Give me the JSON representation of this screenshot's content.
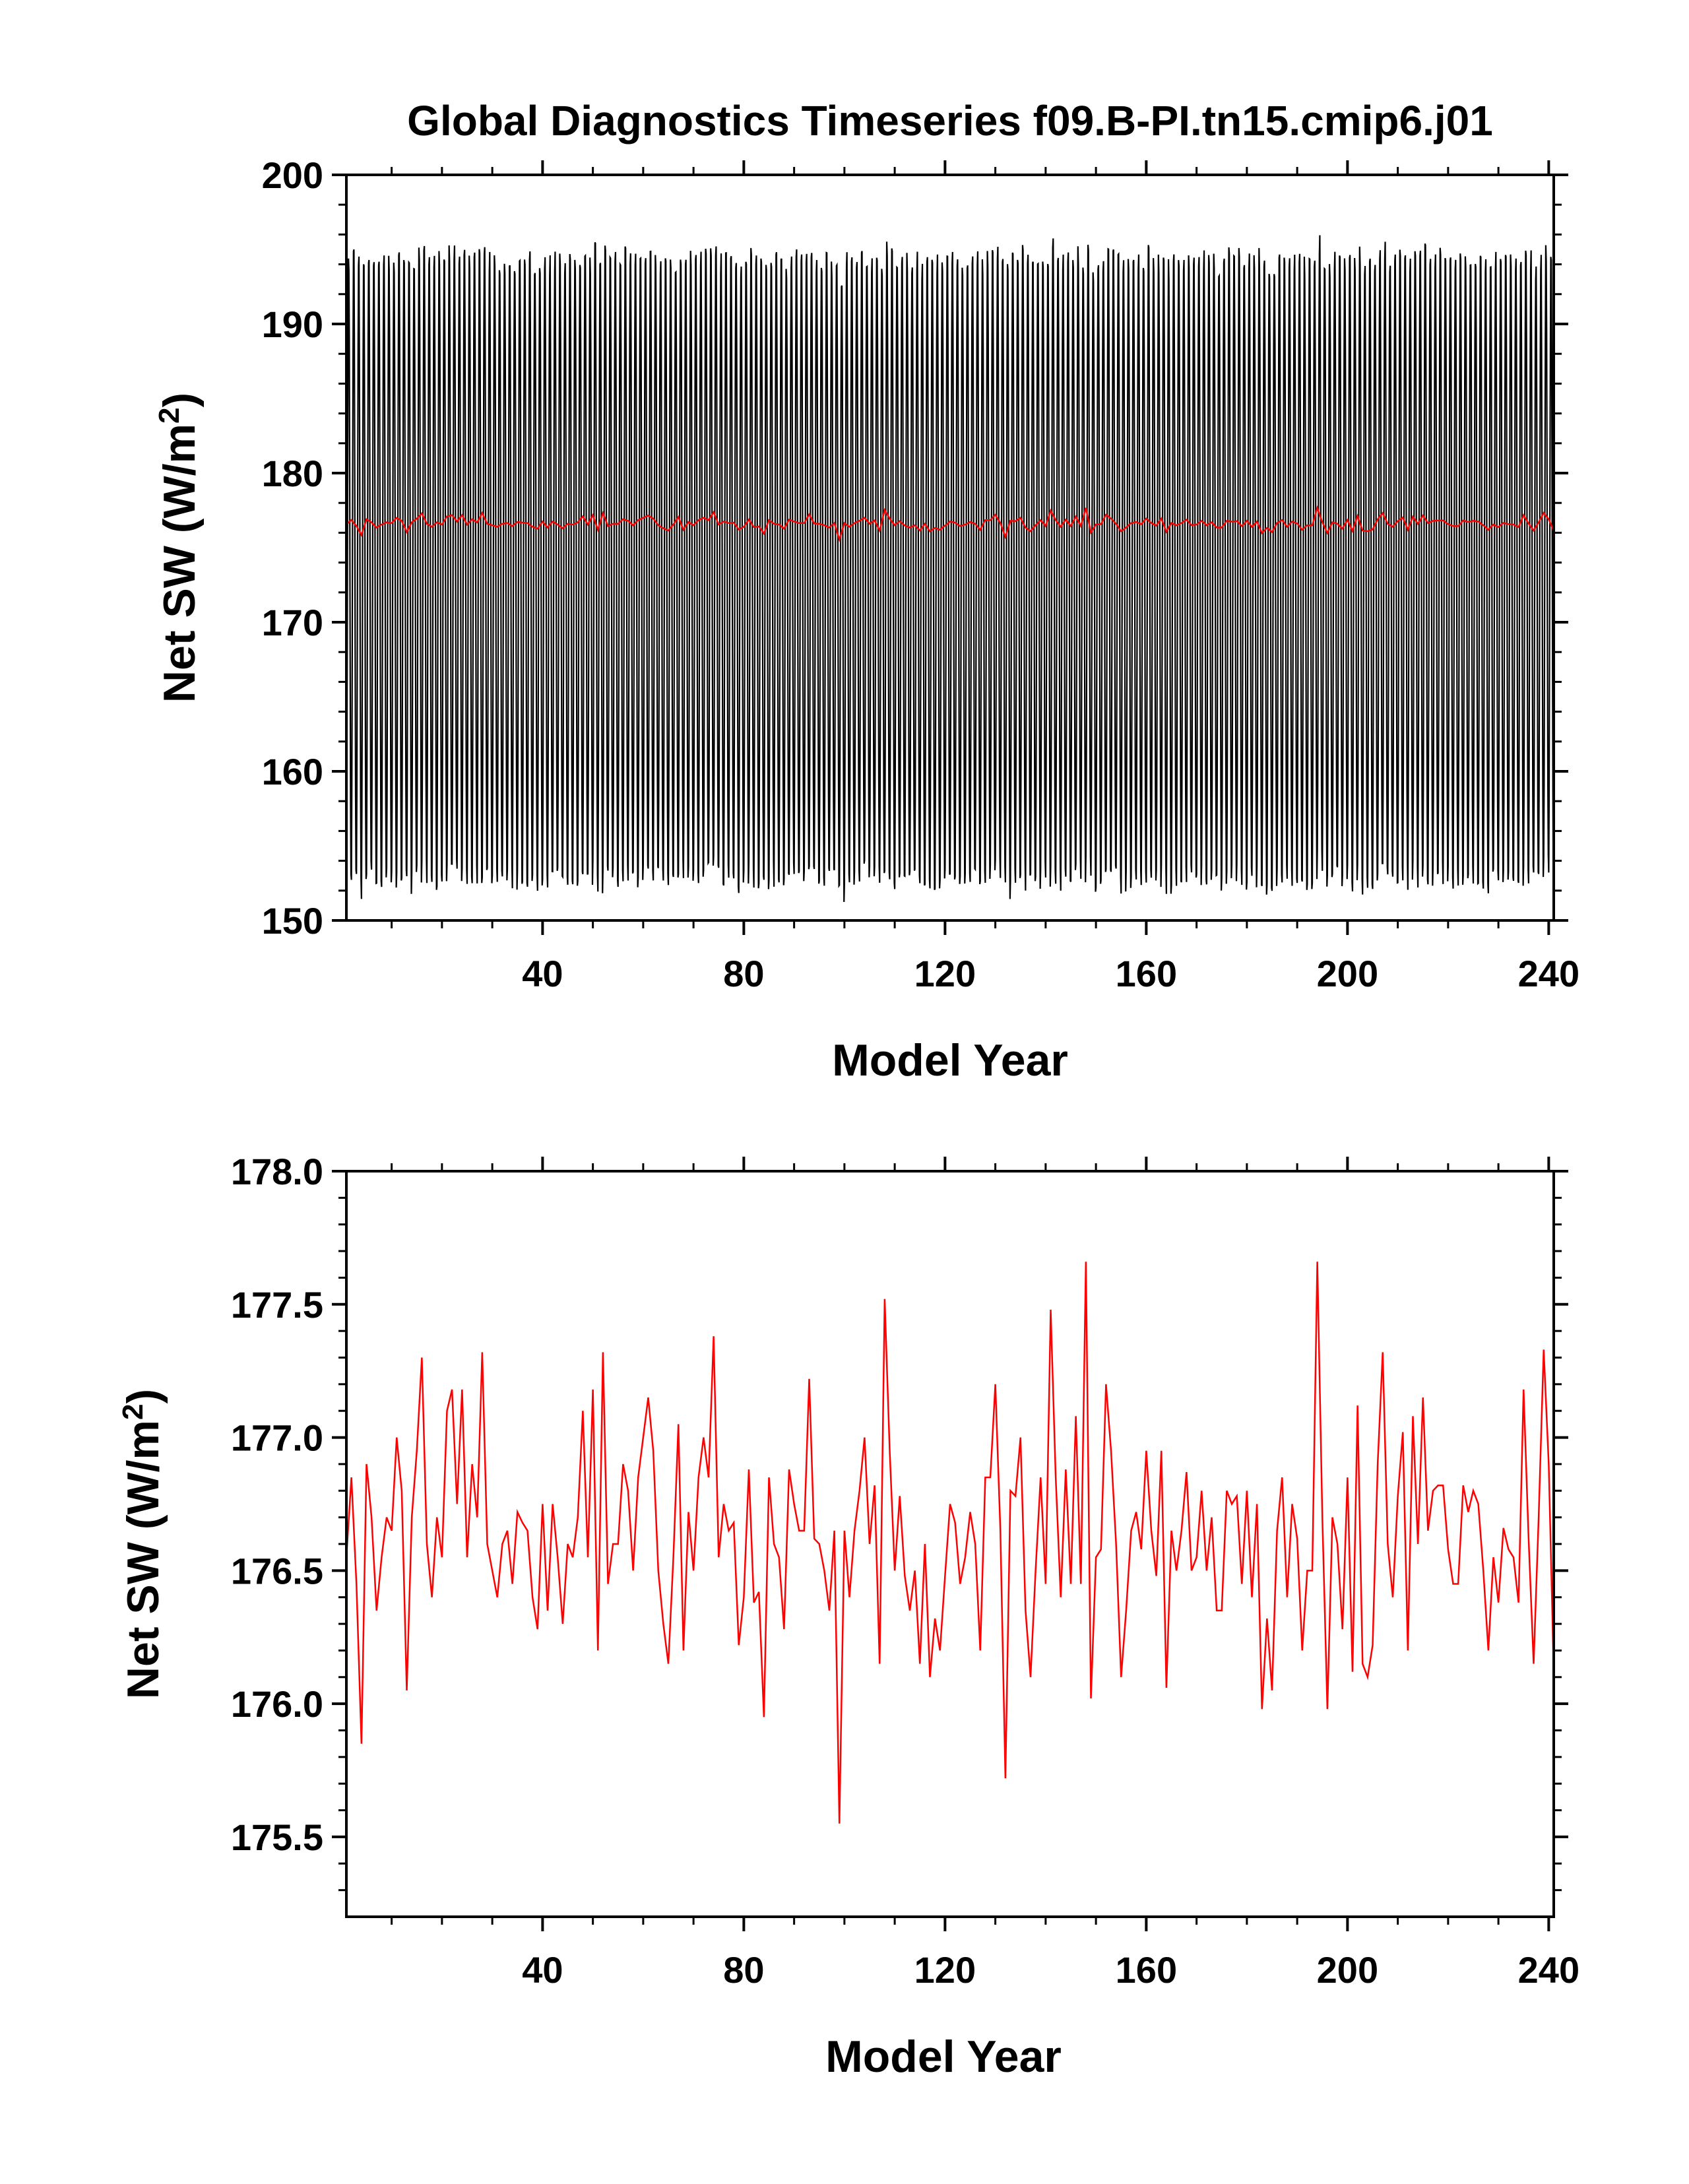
{
  "figure": {
    "title": "Global Diagnostics Timeseries f09.B-PI.tn15.cmip6.j01"
  },
  "colors": {
    "monthly_series": "#000000",
    "annual_series": "#ff0000",
    "axes": "#000000",
    "background": "#ffffff"
  },
  "chart_data": [
    {
      "type": "line",
      "panel": "top",
      "title": "Global Diagnostics Timeseries f09.B-PI.tn15.cmip6.j01",
      "xlabel": "Model Year",
      "ylabel": "Net SW (W/m2)",
      "ylabel_parts": {
        "main": "Net SW (W/m",
        "sup": "2",
        "end": ")"
      },
      "xlim": [
        1,
        241
      ],
      "ylim": [
        150,
        200
      ],
      "xticks": [
        40,
        80,
        120,
        160,
        200,
        240
      ],
      "xtick_labels": [
        "40",
        "80",
        "120",
        "160",
        "200",
        "240"
      ],
      "yticks": [
        150,
        160,
        170,
        180,
        190,
        200
      ],
      "ytick_labels": [
        "150",
        "160",
        "170",
        "180",
        "190",
        "200"
      ],
      "grid": false,
      "legend": "none",
      "series": [
        {
          "kind": "monthly",
          "color": "#000000",
          "x_start": 1,
          "months_per_year": 12,
          "years": 240,
          "seasonal_min": 152.2,
          "seasonal_max": 194.9,
          "overall_min": 150.4,
          "overall_max": 196.8
        },
        {
          "kind": "annual_mean",
          "color": "#ff0000",
          "ref": "annual_mean"
        }
      ]
    },
    {
      "type": "line",
      "panel": "bottom",
      "xlabel": "Model Year",
      "ylabel": "Net SW (W/m2)",
      "ylabel_parts": {
        "main": "Net SW (W/m",
        "sup": "2",
        "end": ")"
      },
      "xlim": [
        1,
        241
      ],
      "ylim": [
        175.2,
        178.0
      ],
      "xticks": [
        40,
        80,
        120,
        160,
        200,
        240
      ],
      "xtick_labels": [
        "40",
        "80",
        "120",
        "160",
        "200",
        "240"
      ],
      "yticks": [
        175.5,
        176.0,
        176.5,
        177.0,
        177.5,
        178.0
      ],
      "ytick_labels": [
        "175.5",
        "176.0",
        "176.5",
        "177.0",
        "177.5",
        "178.0"
      ],
      "grid": false,
      "legend": "none",
      "series": [
        {
          "kind": "annual_mean",
          "color": "#ff0000",
          "x_start": 1,
          "values": [
            176.55,
            176.85,
            176.45,
            175.85,
            176.9,
            176.7,
            176.35,
            176.55,
            176.7,
            176.65,
            177.0,
            176.8,
            176.05,
            176.7,
            176.95,
            177.3,
            176.6,
            176.4,
            176.7,
            176.55,
            177.1,
            177.18,
            176.75,
            177.18,
            176.55,
            176.9,
            176.7,
            177.32,
            176.6,
            176.5,
            176.4,
            176.6,
            176.65,
            176.45,
            176.72,
            176.68,
            176.65,
            176.4,
            176.28,
            176.75,
            176.35,
            176.75,
            176.55,
            176.3,
            176.6,
            176.55,
            176.7,
            177.1,
            176.55,
            177.18,
            176.2,
            177.32,
            176.45,
            176.6,
            176.6,
            176.9,
            176.8,
            176.5,
            176.85,
            177.0,
            177.15,
            176.95,
            176.5,
            176.3,
            176.15,
            176.55,
            177.05,
            176.2,
            176.72,
            176.5,
            176.85,
            177.0,
            176.85,
            177.38,
            176.55,
            176.75,
            176.65,
            176.68,
            176.22,
            176.4,
            176.88,
            176.38,
            176.42,
            175.95,
            176.85,
            176.6,
            176.55,
            176.28,
            176.88,
            176.75,
            176.65,
            176.65,
            177.22,
            176.62,
            176.6,
            176.5,
            176.35,
            176.65,
            175.55,
            176.65,
            176.4,
            176.65,
            176.8,
            177.0,
            176.6,
            176.82,
            176.15,
            177.52,
            176.95,
            176.5,
            176.78,
            176.48,
            176.35,
            176.5,
            176.15,
            176.6,
            176.1,
            176.32,
            176.2,
            176.48,
            176.75,
            176.68,
            176.45,
            176.55,
            176.72,
            176.6,
            176.2,
            176.85,
            176.85,
            177.2,
            176.65,
            175.72,
            176.8,
            176.78,
            177.0,
            176.35,
            176.1,
            176.5,
            176.85,
            176.45,
            177.48,
            176.85,
            176.4,
            176.88,
            176.45,
            177.08,
            176.45,
            177.66,
            176.02,
            176.55,
            176.58,
            177.2,
            176.95,
            176.6,
            176.1,
            176.35,
            176.65,
            176.72,
            176.58,
            176.95,
            176.65,
            176.48,
            176.95,
            176.06,
            176.65,
            176.5,
            176.65,
            176.87,
            176.5,
            176.55,
            176.8,
            176.5,
            176.7,
            176.35,
            176.35,
            176.8,
            176.75,
            176.78,
            176.45,
            176.8,
            176.4,
            176.75,
            175.98,
            176.32,
            176.05,
            176.65,
            176.85,
            176.4,
            176.75,
            176.62,
            176.2,
            176.5,
            176.5,
            177.66,
            176.7,
            175.98,
            176.7,
            176.6,
            176.28,
            176.85,
            176.12,
            177.12,
            176.15,
            176.1,
            176.22,
            176.9,
            177.32,
            176.6,
            176.4,
            176.78,
            177.02,
            176.2,
            177.08,
            176.6,
            177.15,
            176.65,
            176.8,
            176.82,
            176.82,
            176.58,
            176.45,
            176.45,
            176.82,
            176.72,
            176.8,
            176.75,
            176.5,
            176.2,
            176.55,
            176.38,
            176.66,
            176.58,
            176.55,
            176.38,
            177.18,
            176.62,
            176.15,
            176.7,
            177.33,
            176.9,
            176.12
          ]
        }
      ]
    }
  ]
}
